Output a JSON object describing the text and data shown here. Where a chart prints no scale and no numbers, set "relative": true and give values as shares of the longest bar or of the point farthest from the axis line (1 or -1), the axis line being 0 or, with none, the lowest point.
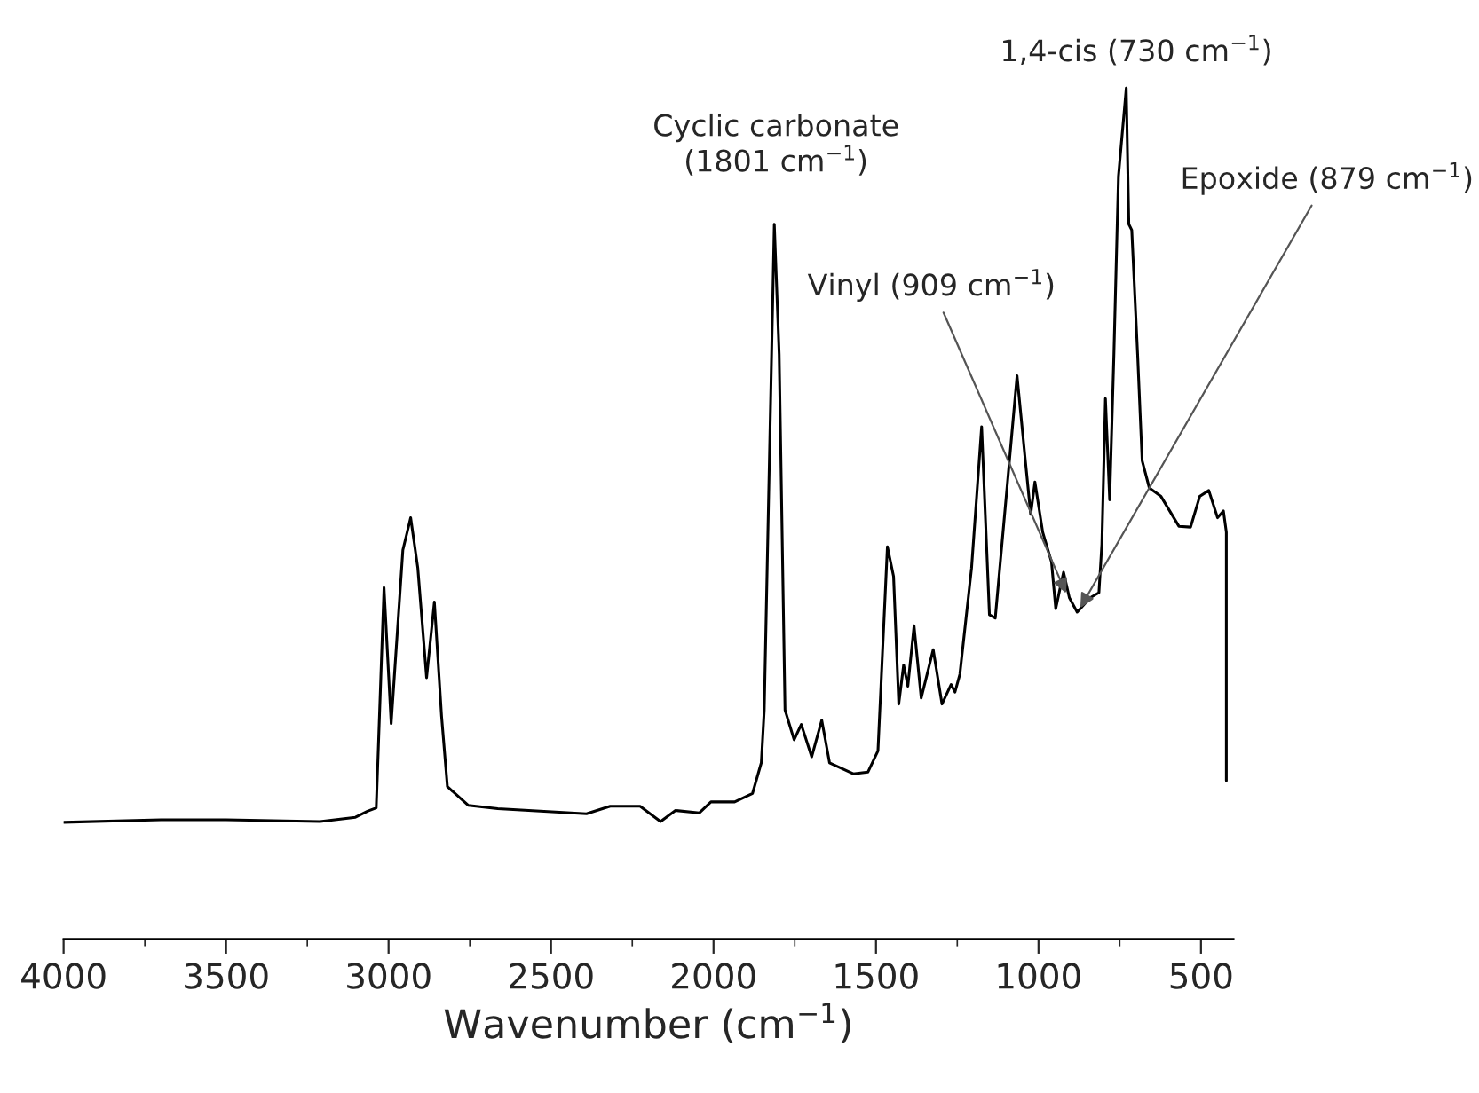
{
  "chart_data": {
    "type": "line",
    "relative": true,
    "xlabel": "Wavenumber (cm$^{−1}$)",
    "xlim": [
      4000,
      400
    ],
    "xticks": [
      4000,
      3500,
      3000,
      2500,
      2000,
      1500,
      1000,
      500
    ],
    "grid": false,
    "legend": false,
    "marker": "none",
    "line_style": "solid",
    "series": [
      {
        "color": "#000000",
        "x": [
          4000,
          3700,
          3500,
          3211,
          3102,
          3065,
          3038,
          3014,
          2992,
          2956,
          2932,
          2910,
          2883,
          2859,
          2837,
          2819,
          2755,
          2664,
          2391,
          2318,
          2226,
          2163,
          2117,
          2044,
          2008,
          1935,
          1880,
          1853,
          1844,
          1813,
          1798,
          1780,
          1752,
          1730,
          1698,
          1667,
          1643,
          1570,
          1525,
          1494,
          1465,
          1446,
          1430,
          1415,
          1402,
          1383,
          1361,
          1324,
          1297,
          1269,
          1257,
          1242,
          1206,
          1175,
          1151,
          1133,
          1096,
          1066,
          1042,
          1024,
          1011,
          987,
          960,
          947,
          923,
          905,
          881,
          841,
          814,
          805,
          794,
          781,
          768,
          754,
          730,
          722,
          713,
          695,
          681,
          659,
          623,
          568,
          532,
          504,
          476,
          449,
          431,
          422,
          422
        ],
        "values": [
          0.137,
          0.14,
          0.14,
          0.138,
          0.143,
          0.15,
          0.154,
          0.413,
          0.253,
          0.457,
          0.495,
          0.436,
          0.307,
          0.396,
          0.262,
          0.179,
          0.157,
          0.153,
          0.147,
          0.156,
          0.156,
          0.138,
          0.151,
          0.148,
          0.161,
          0.161,
          0.171,
          0.207,
          0.269,
          0.84,
          0.687,
          0.269,
          0.234,
          0.252,
          0.214,
          0.257,
          0.207,
          0.194,
          0.196,
          0.221,
          0.461,
          0.426,
          0.276,
          0.322,
          0.297,
          0.368,
          0.283,
          0.34,
          0.276,
          0.299,
          0.29,
          0.311,
          0.436,
          0.602,
          0.381,
          0.377,
          0.534,
          0.662,
          0.568,
          0.499,
          0.537,
          0.478,
          0.443,
          0.388,
          0.431,
          0.401,
          0.384,
          0.401,
          0.407,
          0.464,
          0.635,
          0.516,
          0.687,
          0.896,
          1.0,
          0.84,
          0.833,
          0.687,
          0.562,
          0.53,
          0.52,
          0.485,
          0.484,
          0.52,
          0.527,
          0.495,
          0.503,
          0.478,
          0.186
        ]
      }
    ],
    "annotations": [
      {
        "text": "Cyclic carbonate\n(1801 cm$^{−1}$)",
        "x": 1801,
        "y": 0.84
      },
      {
        "text": "1,4-cis (730 cm$^{−1}$)",
        "x": 730,
        "y": 1.0
      },
      {
        "text": "Vinyl (909 cm$^{−1}$)",
        "x": 909,
        "y": 0.401
      },
      {
        "text": "Epoxide (879 cm$^{−1}$)",
        "x": 879,
        "y": 0.384
      }
    ]
  }
}
